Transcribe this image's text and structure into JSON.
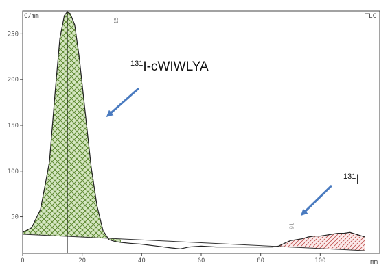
{
  "chart_data": {
    "type": "area",
    "y_unit_label": "C/mm",
    "x_unit_label": "mm",
    "corner_label": "TLC",
    "xlim": [
      0,
      120
    ],
    "ylim": [
      10,
      275
    ],
    "x_ticks": [
      0,
      20,
      40,
      60,
      80,
      100
    ],
    "y_ticks": [
      50,
      100,
      150,
      200,
      250
    ],
    "grid": false,
    "peak_markers": [
      {
        "x": 15,
        "label": "15"
      },
      {
        "x": 91,
        "label": "91"
      }
    ],
    "vertical_line_x": 15,
    "trace": {
      "x": [
        0,
        3,
        6,
        9,
        11,
        12.5,
        14,
        15,
        16,
        17.5,
        19,
        21,
        23,
        25,
        27,
        29,
        31,
        33,
        36,
        40,
        45,
        50,
        53,
        56,
        60,
        65,
        70,
        75,
        80,
        84,
        86,
        88,
        90,
        92,
        94,
        96,
        98,
        100,
        102,
        104,
        106,
        108,
        110,
        112,
        114,
        115
      ],
      "y": [
        33,
        38,
        58,
        110,
        190,
        245,
        270,
        274,
        272,
        260,
        225,
        165,
        105,
        62,
        35,
        25,
        23,
        22,
        21,
        20,
        18,
        16,
        15,
        17,
        18,
        17,
        17,
        17,
        17,
        17,
        18,
        21,
        24,
        25,
        26,
        28,
        29,
        29,
        30,
        31,
        32,
        32,
        33,
        31,
        29,
        28
      ]
    },
    "baseline": {
      "x": [
        0,
        115
      ],
      "y": [
        31,
        13
      ]
    },
    "shaded_regions": [
      {
        "x_range": [
          0,
          33
        ],
        "color": "#6a8f3a",
        "pattern": "crosshatch"
      },
      {
        "x_range": [
          84,
          115
        ],
        "color": "#c0504d",
        "pattern": "diagonal"
      }
    ],
    "annotations": [
      {
        "sup": "131",
        "text": "I-cWIWLYA"
      },
      {
        "sup": "131",
        "text": "I"
      }
    ],
    "arrow_color": "#4a7bc0"
  }
}
